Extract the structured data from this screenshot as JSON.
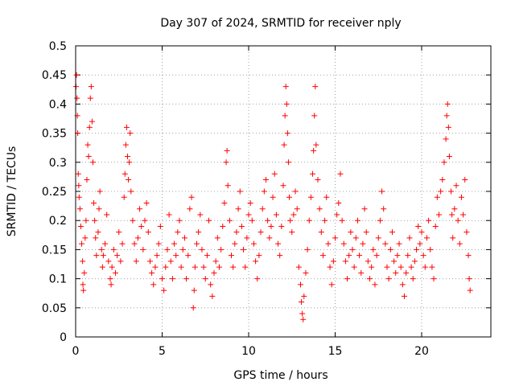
{
  "chart_data": {
    "type": "scatter",
    "title": "Day 307 of 2024, SRMTID for receiver nply",
    "xlabel": "GPS time / hours",
    "ylabel": "SRMTID / TECUs",
    "xlim": [
      0,
      24
    ],
    "ylim": [
      0,
      0.5
    ],
    "xticks": [
      0,
      5,
      10,
      15,
      20
    ],
    "yticks": [
      0,
      0.05,
      0.1,
      0.15,
      0.2,
      0.25,
      0.3,
      0.35,
      0.4,
      0.45,
      0.5
    ],
    "xtick_labels": [
      "0",
      "5",
      "10",
      "15",
      "20"
    ],
    "ytick_labels": [
      "0",
      "0.05",
      "0.1",
      "0.15",
      "0.2",
      "0.25",
      "0.3",
      "0.35",
      "0.4",
      "0.45",
      "0.5"
    ],
    "grid": true,
    "marker": "+",
    "color": "#ff0000",
    "series": [
      {
        "name": "",
        "points": [
          [
            0.02,
            0.43
          ],
          [
            0.05,
            0.45
          ],
          [
            0.08,
            0.41
          ],
          [
            0.1,
            0.38
          ],
          [
            0.12,
            0.35
          ],
          [
            0.15,
            0.28
          ],
          [
            0.18,
            0.26
          ],
          [
            0.2,
            0.24
          ],
          [
            0.25,
            0.22
          ],
          [
            0.3,
            0.19
          ],
          [
            0.35,
            0.16
          ],
          [
            0.4,
            0.13
          ],
          [
            0.42,
            0.09
          ],
          [
            0.45,
            0.08
          ],
          [
            0.5,
            0.11
          ],
          [
            0.55,
            0.17
          ],
          [
            0.6,
            0.2
          ],
          [
            0.65,
            0.27
          ],
          [
            0.7,
            0.33
          ],
          [
            0.75,
            0.31
          ],
          [
            0.8,
            0.36
          ],
          [
            0.85,
            0.41
          ],
          [
            0.9,
            0.43
          ],
          [
            0.95,
            0.37
          ],
          [
            1.0,
            0.3
          ],
          [
            1.05,
            0.23
          ],
          [
            1.1,
            0.2
          ],
          [
            1.15,
            0.17
          ],
          [
            1.2,
            0.14
          ],
          [
            1.3,
            0.18
          ],
          [
            1.35,
            0.22
          ],
          [
            1.4,
            0.25
          ],
          [
            1.5,
            0.15
          ],
          [
            1.55,
            0.12
          ],
          [
            1.6,
            0.14
          ],
          [
            1.7,
            0.16
          ],
          [
            1.8,
            0.21
          ],
          [
            1.9,
            0.13
          ],
          [
            2.0,
            0.1
          ],
          [
            2.05,
            0.09
          ],
          [
            2.1,
            0.12
          ],
          [
            2.2,
            0.15
          ],
          [
            2.3,
            0.11
          ],
          [
            2.4,
            0.14
          ],
          [
            2.5,
            0.18
          ],
          [
            2.6,
            0.13
          ],
          [
            2.7,
            0.16
          ],
          [
            2.8,
            0.24
          ],
          [
            2.85,
            0.28
          ],
          [
            2.9,
            0.33
          ],
          [
            2.95,
            0.36
          ],
          [
            3.0,
            0.31
          ],
          [
            3.05,
            0.27
          ],
          [
            3.1,
            0.3
          ],
          [
            3.15,
            0.35
          ],
          [
            3.2,
            0.25
          ],
          [
            3.3,
            0.2
          ],
          [
            3.4,
            0.16
          ],
          [
            3.5,
            0.13
          ],
          [
            3.6,
            0.17
          ],
          [
            3.7,
            0.22
          ],
          [
            3.8,
            0.19
          ],
          [
            3.9,
            0.15
          ],
          [
            4.0,
            0.2
          ],
          [
            4.1,
            0.23
          ],
          [
            4.2,
            0.18
          ],
          [
            4.3,
            0.13
          ],
          [
            4.4,
            0.11
          ],
          [
            4.5,
            0.09
          ],
          [
            4.6,
            0.12
          ],
          [
            4.7,
            0.14
          ],
          [
            4.8,
            0.16
          ],
          [
            4.9,
            0.19
          ],
          [
            5.0,
            0.1
          ],
          [
            5.1,
            0.08
          ],
          [
            5.2,
            0.12
          ],
          [
            5.3,
            0.15
          ],
          [
            5.4,
            0.21
          ],
          [
            5.5,
            0.13
          ],
          [
            5.6,
            0.1
          ],
          [
            5.7,
            0.16
          ],
          [
            5.8,
            0.14
          ],
          [
            5.9,
            0.18
          ],
          [
            6.0,
            0.2
          ],
          [
            6.1,
            0.12
          ],
          [
            6.2,
            0.15
          ],
          [
            6.3,
            0.17
          ],
          [
            6.4,
            0.1
          ],
          [
            6.5,
            0.14
          ],
          [
            6.6,
            0.22
          ],
          [
            6.7,
            0.24
          ],
          [
            6.8,
            0.05
          ],
          [
            6.85,
            0.08
          ],
          [
            6.9,
            0.12
          ],
          [
            7.0,
            0.16
          ],
          [
            7.1,
            0.18
          ],
          [
            7.2,
            0.21
          ],
          [
            7.3,
            0.15
          ],
          [
            7.4,
            0.12
          ],
          [
            7.5,
            0.1
          ],
          [
            7.6,
            0.14
          ],
          [
            7.7,
            0.2
          ],
          [
            7.8,
            0.09
          ],
          [
            7.9,
            0.07
          ],
          [
            8.0,
            0.11
          ],
          [
            8.1,
            0.13
          ],
          [
            8.2,
            0.17
          ],
          [
            8.3,
            0.12
          ],
          [
            8.4,
            0.15
          ],
          [
            8.5,
            0.19
          ],
          [
            8.6,
            0.23
          ],
          [
            8.7,
            0.3
          ],
          [
            8.75,
            0.32
          ],
          [
            8.8,
            0.26
          ],
          [
            8.9,
            0.2
          ],
          [
            9.0,
            0.14
          ],
          [
            9.1,
            0.12
          ],
          [
            9.2,
            0.16
          ],
          [
            9.3,
            0.18
          ],
          [
            9.4,
            0.22
          ],
          [
            9.5,
            0.25
          ],
          [
            9.6,
            0.19
          ],
          [
            9.7,
            0.15
          ],
          [
            9.8,
            0.12
          ],
          [
            9.9,
            0.17
          ],
          [
            10.0,
            0.21
          ],
          [
            10.1,
            0.23
          ],
          [
            10.2,
            0.2
          ],
          [
            10.3,
            0.16
          ],
          [
            10.4,
            0.13
          ],
          [
            10.5,
            0.1
          ],
          [
            10.6,
            0.14
          ],
          [
            10.7,
            0.18
          ],
          [
            10.8,
            0.22
          ],
          [
            10.9,
            0.25
          ],
          [
            11.0,
            0.27
          ],
          [
            11.1,
            0.2
          ],
          [
            11.2,
            0.17
          ],
          [
            11.3,
            0.19
          ],
          [
            11.4,
            0.24
          ],
          [
            11.5,
            0.28
          ],
          [
            11.6,
            0.21
          ],
          [
            11.7,
            0.16
          ],
          [
            11.8,
            0.14
          ],
          [
            11.9,
            0.19
          ],
          [
            12.0,
            0.26
          ],
          [
            12.05,
            0.33
          ],
          [
            12.1,
            0.38
          ],
          [
            12.15,
            0.43
          ],
          [
            12.2,
            0.4
          ],
          [
            12.25,
            0.35
          ],
          [
            12.3,
            0.3
          ],
          [
            12.35,
            0.24
          ],
          [
            12.4,
            0.2
          ],
          [
            12.5,
            0.18
          ],
          [
            12.6,
            0.21
          ],
          [
            12.7,
            0.25
          ],
          [
            12.8,
            0.22
          ],
          [
            12.9,
            0.12
          ],
          [
            13.0,
            0.09
          ],
          [
            13.05,
            0.06
          ],
          [
            13.1,
            0.04
          ],
          [
            13.15,
            0.03
          ],
          [
            13.2,
            0.07
          ],
          [
            13.3,
            0.11
          ],
          [
            13.4,
            0.15
          ],
          [
            13.5,
            0.2
          ],
          [
            13.6,
            0.24
          ],
          [
            13.7,
            0.28
          ],
          [
            13.75,
            0.32
          ],
          [
            13.8,
            0.38
          ],
          [
            13.85,
            0.43
          ],
          [
            13.9,
            0.33
          ],
          [
            14.0,
            0.27
          ],
          [
            14.1,
            0.22
          ],
          [
            14.2,
            0.18
          ],
          [
            14.3,
            0.14
          ],
          [
            14.4,
            0.2
          ],
          [
            14.5,
            0.24
          ],
          [
            14.6,
            0.16
          ],
          [
            14.7,
            0.12
          ],
          [
            14.8,
            0.09
          ],
          [
            14.9,
            0.13
          ],
          [
            15.0,
            0.17
          ],
          [
            15.1,
            0.21
          ],
          [
            15.2,
            0.23
          ],
          [
            15.3,
            0.28
          ],
          [
            15.4,
            0.2
          ],
          [
            15.5,
            0.16
          ],
          [
            15.6,
            0.13
          ],
          [
            15.7,
            0.1
          ],
          [
            15.8,
            0.14
          ],
          [
            15.9,
            0.18
          ],
          [
            16.0,
            0.15
          ],
          [
            16.1,
            0.12
          ],
          [
            16.2,
            0.17
          ],
          [
            16.3,
            0.2
          ],
          [
            16.4,
            0.14
          ],
          [
            16.5,
            0.11
          ],
          [
            16.6,
            0.16
          ],
          [
            16.7,
            0.22
          ],
          [
            16.8,
            0.18
          ],
          [
            16.9,
            0.13
          ],
          [
            17.0,
            0.1
          ],
          [
            17.1,
            0.12
          ],
          [
            17.2,
            0.15
          ],
          [
            17.3,
            0.09
          ],
          [
            17.4,
            0.14
          ],
          [
            17.5,
            0.17
          ],
          [
            17.6,
            0.2
          ],
          [
            17.7,
            0.25
          ],
          [
            17.8,
            0.22
          ],
          [
            17.9,
            0.16
          ],
          [
            18.0,
            0.12
          ],
          [
            18.1,
            0.1
          ],
          [
            18.2,
            0.15
          ],
          [
            18.3,
            0.18
          ],
          [
            18.4,
            0.13
          ],
          [
            18.5,
            0.11
          ],
          [
            18.6,
            0.14
          ],
          [
            18.7,
            0.16
          ],
          [
            18.8,
            0.12
          ],
          [
            18.9,
            0.09
          ],
          [
            19.0,
            0.07
          ],
          [
            19.1,
            0.11
          ],
          [
            19.2,
            0.14
          ],
          [
            19.3,
            0.17
          ],
          [
            19.4,
            0.12
          ],
          [
            19.5,
            0.1
          ],
          [
            19.6,
            0.13
          ],
          [
            19.7,
            0.15
          ],
          [
            19.8,
            0.19
          ],
          [
            19.9,
            0.16
          ],
          [
            20.0,
            0.18
          ],
          [
            20.1,
            0.14
          ],
          [
            20.2,
            0.12
          ],
          [
            20.3,
            0.17
          ],
          [
            20.4,
            0.2
          ],
          [
            20.5,
            0.15
          ],
          [
            20.6,
            0.12
          ],
          [
            20.7,
            0.1
          ],
          [
            20.8,
            0.19
          ],
          [
            20.9,
            0.24
          ],
          [
            21.0,
            0.21
          ],
          [
            21.1,
            0.25
          ],
          [
            21.2,
            0.27
          ],
          [
            21.3,
            0.3
          ],
          [
            21.4,
            0.34
          ],
          [
            21.45,
            0.38
          ],
          [
            21.5,
            0.4
          ],
          [
            21.55,
            0.36
          ],
          [
            21.6,
            0.31
          ],
          [
            21.7,
            0.25
          ],
          [
            21.75,
            0.21
          ],
          [
            21.8,
            0.17
          ],
          [
            21.9,
            0.22
          ],
          [
            22.0,
            0.26
          ],
          [
            22.1,
            0.2
          ],
          [
            22.2,
            0.16
          ],
          [
            22.3,
            0.24
          ],
          [
            22.4,
            0.21
          ],
          [
            22.5,
            0.27
          ],
          [
            22.6,
            0.18
          ],
          [
            22.7,
            0.14
          ],
          [
            22.75,
            0.1
          ],
          [
            22.8,
            0.08
          ]
        ]
      }
    ]
  }
}
